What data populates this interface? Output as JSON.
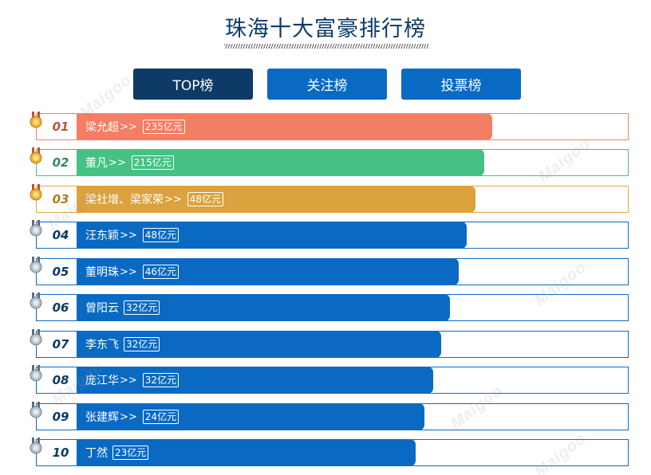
{
  "page": {
    "title": "珠海十大富豪排行榜"
  },
  "tabs": [
    {
      "label": "TOP榜",
      "active": true
    },
    {
      "label": "关注榜",
      "active": false
    },
    {
      "label": "投票榜",
      "active": false
    }
  ],
  "watermark_text": "Maigoo",
  "colors": {
    "primary": "#0a6ac3",
    "dark": "#0d3a66",
    "rank1": "#f47e63",
    "rank2": "#45c184",
    "rank3": "#dba23d"
  },
  "ranking": [
    {
      "rank": "01",
      "name": "梁允超",
      "has_link": true,
      "amount": "235亿元",
      "medal": "gold-medal"
    },
    {
      "rank": "02",
      "name": "董凡",
      "has_link": true,
      "amount": "215亿元",
      "medal": "gold-medal"
    },
    {
      "rank": "03",
      "name": "梁社增、梁家荣",
      "has_link": true,
      "amount": "48亿元",
      "medal": "gold-medal"
    },
    {
      "rank": "04",
      "name": "汪东颖",
      "has_link": true,
      "amount": "48亿元",
      "medal": "silver-medal"
    },
    {
      "rank": "05",
      "name": "董明珠",
      "has_link": true,
      "amount": "46亿元",
      "medal": "silver-medal"
    },
    {
      "rank": "06",
      "name": "曾阳云",
      "has_link": false,
      "amount": "32亿元",
      "medal": "silver-medal"
    },
    {
      "rank": "07",
      "name": "李东飞",
      "has_link": false,
      "amount": "32亿元",
      "medal": "silver-medal"
    },
    {
      "rank": "08",
      "name": "庞江华",
      "has_link": true,
      "amount": "32亿元",
      "medal": "silver-medal"
    },
    {
      "rank": "09",
      "name": "张建辉",
      "has_link": true,
      "amount": "24亿元",
      "medal": "silver-medal"
    },
    {
      "rank": "10",
      "name": "丁然",
      "has_link": false,
      "amount": "23亿元",
      "medal": "silver-medal"
    }
  ],
  "link_marker": ">>"
}
